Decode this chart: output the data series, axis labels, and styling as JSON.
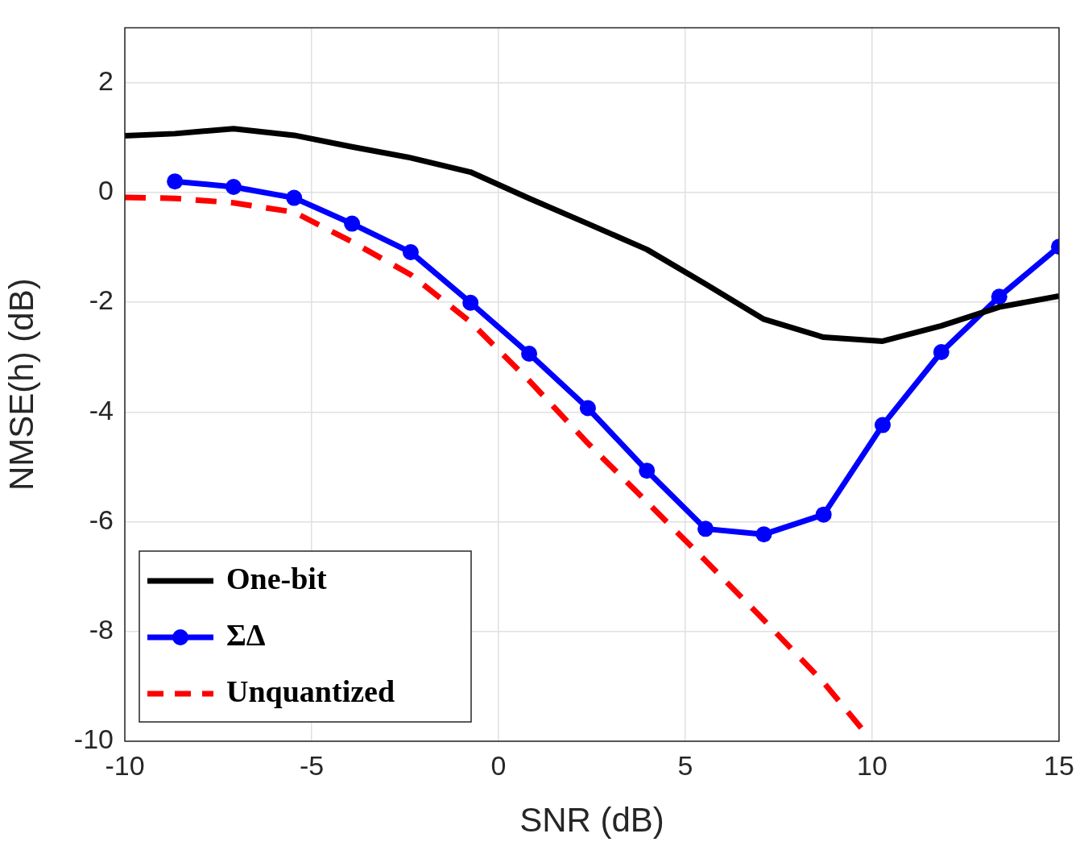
{
  "chart_data": {
    "type": "line",
    "xlabel": "SNR (dB)",
    "ylabel": "NMSE(h) (dB)",
    "xlim": [
      -10,
      15
    ],
    "ylim": [
      -10,
      3
    ],
    "xticks": [
      -10,
      -5,
      0,
      5,
      10,
      15
    ],
    "yticks": [
      -10,
      -8,
      -6,
      -4,
      -2,
      0,
      2
    ],
    "grid": true,
    "legend": "bottom left",
    "series": [
      {
        "name": "One-bit",
        "color": "#000000",
        "marker": "none",
        "line_style": "solid",
        "x": [
          -10,
          -8.66,
          -7.09,
          -5.47,
          -3.92,
          -2.35,
          -0.75,
          0.82,
          2.39,
          3.97,
          5.54,
          7.1,
          8.7,
          10.28,
          11.85,
          13.4,
          15
        ],
        "values": [
          1.03,
          1.07,
          1.16,
          1.04,
          0.83,
          0.63,
          0.37,
          -0.11,
          -0.57,
          -1.04,
          -1.67,
          -2.31,
          -2.64,
          -2.71,
          -2.43,
          -2.09,
          -1.89
        ]
      },
      {
        "name": "ΣΔ",
        "color": "#0000ff",
        "marker": "circle",
        "line_style": "solid",
        "x": [
          -8.66,
          -7.09,
          -5.47,
          -3.92,
          -2.35,
          -0.75,
          0.82,
          2.39,
          3.97,
          5.54,
          7.1,
          8.7,
          10.28,
          11.85,
          13.4,
          15
        ],
        "values": [
          0.2,
          0.1,
          -0.1,
          -0.57,
          -1.09,
          -2.01,
          -2.94,
          -3.93,
          -5.07,
          -6.13,
          -6.23,
          -5.87,
          -4.24,
          -2.91,
          -1.9,
          -0.99
        ]
      },
      {
        "name": "Unquantized",
        "color": "#ff0000",
        "marker": "none",
        "line_style": "dashed",
        "x": [
          -10,
          -8.66,
          -7.09,
          -5.47,
          -3.92,
          -2.35,
          -0.75,
          0.82,
          2.39,
          3.97,
          5.54,
          7.1,
          8.7,
          9.83
        ],
        "values": [
          -0.09,
          -0.11,
          -0.19,
          -0.36,
          -0.9,
          -1.5,
          -2.36,
          -3.43,
          -4.57,
          -5.64,
          -6.71,
          -7.79,
          -8.93,
          -9.86
        ]
      }
    ]
  }
}
